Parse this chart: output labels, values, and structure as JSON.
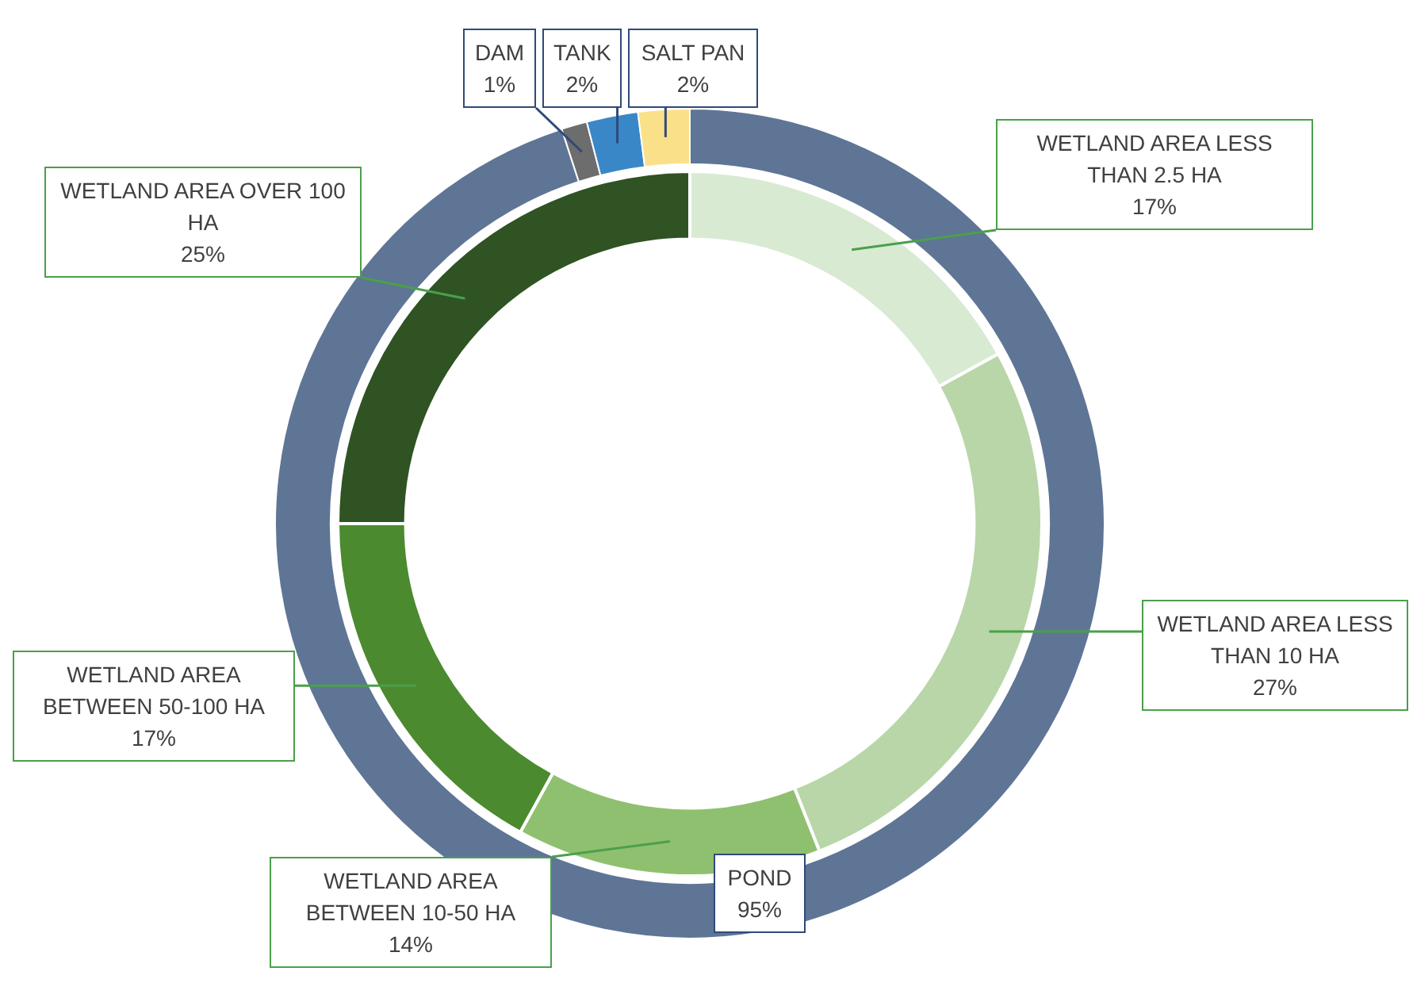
{
  "chart_data": [
    {
      "type": "donut",
      "legend": false,
      "categories": [
        "POND",
        "DAM",
        "TANK",
        "SALT PAN"
      ],
      "values": [
        95,
        1,
        2,
        2
      ],
      "value_labels": [
        "95%",
        "1%",
        "2%",
        "2%"
      ],
      "colors": [
        "#5f7596",
        "#6d6d6d",
        "#3a87c8",
        "#fbe08a"
      ]
    },
    {
      "type": "donut",
      "legend": false,
      "categories": [
        "WETLAND AREA LESS THAN 2.5 HA",
        "WETLAND AREA LESS THAN 10 HA",
        "WETLAND AREA BETWEEN 10-50 HA",
        "WETLAND AREA BETWEEN 50-100 HA",
        "WETLAND AREA OVER 100 HA"
      ],
      "values": [
        17,
        27,
        14,
        17,
        25
      ],
      "value_labels": [
        "17%",
        "27%",
        "14%",
        "17%",
        "25%"
      ],
      "colors": [
        "#d9ead3",
        "#b8d6a8",
        "#8fc06f",
        "#4b8a2e",
        "#2f5323"
      ]
    }
  ]
}
